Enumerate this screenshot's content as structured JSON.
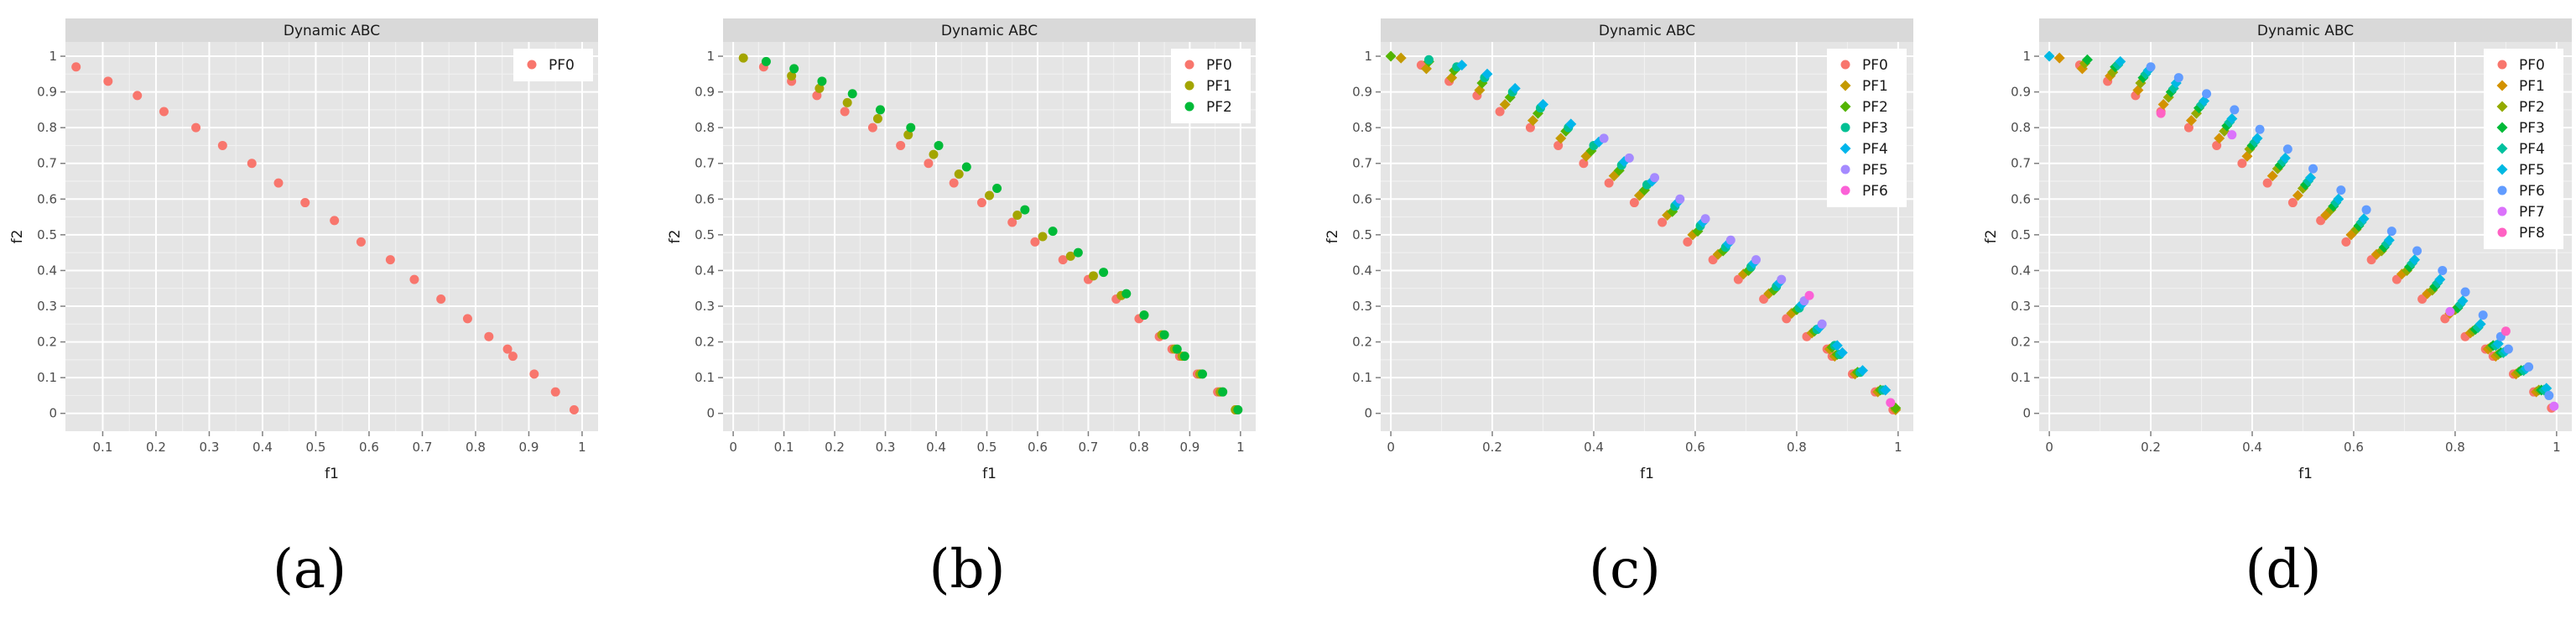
{
  "chart_data": [
    {
      "type": "scatter",
      "caption": "(a)",
      "strip_title": "Dynamic ABC",
      "xlabel": "f1",
      "ylabel": "f2",
      "xticks": [
        "0.1",
        "0.2",
        "0.3",
        "0.4",
        "0.5",
        "0.6",
        "0.7",
        "0.8",
        "0.9",
        "1"
      ],
      "xtick_values": [
        0.1,
        0.2,
        0.3,
        0.4,
        0.5,
        0.6,
        0.7,
        0.8,
        0.9,
        1.0
      ],
      "yticks": [
        "0",
        "0.1",
        "0.2",
        "0.3",
        "0.4",
        "0.5",
        "0.6",
        "0.7",
        "0.8",
        "0.9",
        "1"
      ],
      "xlim": [
        0.03,
        1.03
      ],
      "ylim": [
        -0.05,
        1.04
      ],
      "legend_position": "top-right",
      "series": [
        {
          "name": "PF0",
          "color": "#F8766D",
          "x": [
            0.05,
            0.11,
            0.165,
            0.215,
            0.275,
            0.325,
            0.38,
            0.43,
            0.48,
            0.535,
            0.585,
            0.64,
            0.685,
            0.735,
            0.785,
            0.825,
            0.86,
            0.87,
            0.91,
            0.95,
            0.985
          ],
          "y": [
            0.97,
            0.93,
            0.89,
            0.845,
            0.8,
            0.75,
            0.7,
            0.645,
            0.59,
            0.54,
            0.48,
            0.43,
            0.375,
            0.32,
            0.265,
            0.215,
            0.18,
            0.16,
            0.11,
            0.06,
            0.01
          ]
        }
      ]
    },
    {
      "type": "scatter",
      "caption": "(b)",
      "strip_title": "Dynamic ABC",
      "xlabel": "f1",
      "ylabel": "f2",
      "xticks": [
        "0",
        "0.1",
        "0.2",
        "0.3",
        "0.4",
        "0.5",
        "0.6",
        "0.7",
        "0.8",
        "0.9",
        "1"
      ],
      "xtick_values": [
        0.0,
        0.1,
        0.2,
        0.3,
        0.4,
        0.5,
        0.6,
        0.7,
        0.8,
        0.9,
        1.0
      ],
      "yticks": [
        "0",
        "0.1",
        "0.2",
        "0.3",
        "0.4",
        "0.5",
        "0.6",
        "0.7",
        "0.8",
        "0.9",
        "1"
      ],
      "xlim": [
        -0.02,
        1.03
      ],
      "ylim": [
        -0.05,
        1.04
      ],
      "legend_position": "top-right",
      "series": [
        {
          "name": "PF0",
          "color": "#F8766D",
          "x": [
            0.06,
            0.115,
            0.165,
            0.22,
            0.275,
            0.33,
            0.385,
            0.435,
            0.49,
            0.55,
            0.595,
            0.65,
            0.7,
            0.755,
            0.8,
            0.84,
            0.865,
            0.88,
            0.915,
            0.955,
            0.99
          ],
          "y": [
            0.97,
            0.93,
            0.89,
            0.845,
            0.8,
            0.75,
            0.7,
            0.645,
            0.59,
            0.535,
            0.48,
            0.43,
            0.375,
            0.32,
            0.265,
            0.215,
            0.18,
            0.16,
            0.11,
            0.06,
            0.01
          ]
        },
        {
          "name": "PF1",
          "color": "#A3A500",
          "x": [
            0.02,
            0.115,
            0.17,
            0.225,
            0.285,
            0.345,
            0.395,
            0.445,
            0.505,
            0.56,
            0.61,
            0.665,
            0.71,
            0.765,
            0.81,
            0.845,
            0.87,
            0.885,
            0.92,
            0.96,
            0.99
          ],
          "y": [
            0.995,
            0.945,
            0.91,
            0.87,
            0.825,
            0.78,
            0.725,
            0.67,
            0.61,
            0.555,
            0.495,
            0.44,
            0.385,
            0.33,
            0.275,
            0.22,
            0.18,
            0.16,
            0.11,
            0.06,
            0.01
          ]
        },
        {
          "name": "PF2",
          "color": "#00BA38",
          "x": [
            0.065,
            0.12,
            0.175,
            0.235,
            0.29,
            0.35,
            0.405,
            0.46,
            0.52,
            0.575,
            0.63,
            0.68,
            0.73,
            0.775,
            0.81,
            0.85,
            0.875,
            0.89,
            0.925,
            0.965,
            0.995
          ],
          "y": [
            0.985,
            0.965,
            0.93,
            0.895,
            0.85,
            0.8,
            0.75,
            0.69,
            0.63,
            0.57,
            0.51,
            0.45,
            0.395,
            0.335,
            0.275,
            0.22,
            0.18,
            0.16,
            0.11,
            0.06,
            0.01
          ]
        }
      ]
    },
    {
      "type": "scatter",
      "caption": "(c)",
      "strip_title": "Dynamic ABC",
      "xlabel": "f1",
      "ylabel": "f2",
      "xticks": [
        "0",
        "0.2",
        "0.4",
        "0.6",
        "0.8",
        "1"
      ],
      "xtick_values": [
        0.0,
        0.2,
        0.4,
        0.6,
        0.8,
        1.0
      ],
      "yticks": [
        "0",
        "0.1",
        "0.2",
        "0.3",
        "0.4",
        "0.5",
        "0.6",
        "0.7",
        "0.8",
        "0.9",
        "1"
      ],
      "xlim": [
        -0.02,
        1.03
      ],
      "ylim": [
        -0.05,
        1.04
      ],
      "legend_position": "top-right",
      "series": [
        {
          "name": "PF0",
          "color": "#F8766D",
          "shape": "circle",
          "x": [
            0.06,
            0.115,
            0.17,
            0.215,
            0.275,
            0.33,
            0.38,
            0.43,
            0.48,
            0.535,
            0.585,
            0.635,
            0.685,
            0.735,
            0.78,
            0.82,
            0.86,
            0.87,
            0.91,
            0.955,
            0.99
          ],
          "y": [
            0.975,
            0.93,
            0.89,
            0.845,
            0.8,
            0.75,
            0.7,
            0.645,
            0.59,
            0.535,
            0.48,
            0.43,
            0.375,
            0.32,
            0.265,
            0.215,
            0.18,
            0.16,
            0.11,
            0.06,
            0.01
          ]
        },
        {
          "name": "PF1",
          "color": "#C49A00",
          "shape": "diamond",
          "x": [
            0.02,
            0.07,
            0.12,
            0.175,
            0.225,
            0.28,
            0.335,
            0.385,
            0.44,
            0.49,
            0.545,
            0.595,
            0.645,
            0.695,
            0.745,
            0.79,
            0.83,
            0.865,
            0.875,
            0.915,
            0.96,
            0.995
          ],
          "y": [
            0.995,
            0.965,
            0.94,
            0.905,
            0.865,
            0.82,
            0.77,
            0.72,
            0.665,
            0.61,
            0.555,
            0.5,
            0.445,
            0.39,
            0.335,
            0.28,
            0.225,
            0.18,
            0.16,
            0.11,
            0.06,
            0.01
          ]
        },
        {
          "name": "PF2",
          "color": "#53B400",
          "shape": "diamond",
          "x": [
            0.0,
            0.075,
            0.125,
            0.18,
            0.235,
            0.29,
            0.345,
            0.395,
            0.45,
            0.5,
            0.555,
            0.605,
            0.655,
            0.705,
            0.755,
            0.8,
            0.835,
            0.87,
            0.88,
            0.92,
            0.965,
            0.995
          ],
          "y": [
            1.0,
            0.985,
            0.96,
            0.925,
            0.885,
            0.84,
            0.79,
            0.735,
            0.68,
            0.625,
            0.565,
            0.51,
            0.455,
            0.4,
            0.345,
            0.29,
            0.23,
            0.185,
            0.165,
            0.115,
            0.065,
            0.015
          ]
        },
        {
          "name": "PF3",
          "color": "#00C094",
          "shape": "circle",
          "x": [
            0.075,
            0.13,
            0.185,
            0.24,
            0.295,
            0.35,
            0.4,
            0.455,
            0.505,
            0.56,
            0.61,
            0.66,
            0.71,
            0.76,
            0.805,
            0.84,
            0.875,
            0.885,
            0.925,
            0.97
          ],
          "y": [
            0.99,
            0.97,
            0.94,
            0.9,
            0.855,
            0.8,
            0.75,
            0.695,
            0.64,
            0.58,
            0.525,
            0.465,
            0.41,
            0.355,
            0.295,
            0.235,
            0.19,
            0.165,
            0.115,
            0.065
          ]
        },
        {
          "name": "PF4",
          "color": "#00B6EB",
          "shape": "diamond",
          "x": [
            0.14,
            0.19,
            0.245,
            0.3,
            0.355,
            0.41,
            0.46,
            0.515,
            0.565,
            0.615,
            0.665,
            0.715,
            0.765,
            0.81,
            0.845,
            0.88,
            0.89,
            0.93,
            0.975
          ],
          "y": [
            0.975,
            0.95,
            0.91,
            0.865,
            0.81,
            0.76,
            0.705,
            0.65,
            0.59,
            0.535,
            0.475,
            0.42,
            0.365,
            0.305,
            0.24,
            0.19,
            0.17,
            0.12,
            0.065
          ]
        },
        {
          "name": "PF5",
          "color": "#A58AFF",
          "shape": "circle",
          "x": [
            0.42,
            0.47,
            0.52,
            0.57,
            0.62,
            0.67,
            0.72,
            0.77,
            0.815,
            0.85
          ],
          "y": [
            0.77,
            0.715,
            0.66,
            0.6,
            0.545,
            0.485,
            0.43,
            0.375,
            0.315,
            0.25
          ]
        },
        {
          "name": "PF6",
          "color": "#FB61D7",
          "shape": "circle",
          "x": [
            0.825,
            0.985
          ],
          "y": [
            0.33,
            0.03
          ]
        }
      ]
    },
    {
      "type": "scatter",
      "caption": "(d)",
      "strip_title": "Dynamic ABC",
      "xlabel": "f1",
      "ylabel": "f2",
      "xticks": [
        "0",
        "0.2",
        "0.4",
        "0.6",
        "0.8",
        "1"
      ],
      "xtick_values": [
        0.0,
        0.2,
        0.4,
        0.6,
        0.8,
        1.0
      ],
      "yticks": [
        "0",
        "0.1",
        "0.2",
        "0.3",
        "0.4",
        "0.5",
        "0.6",
        "0.7",
        "0.8",
        "0.9",
        "1"
      ],
      "xlim": [
        -0.02,
        1.03
      ],
      "ylim": [
        -0.05,
        1.04
      ],
      "legend_position": "top-right",
      "series": [
        {
          "name": "PF0",
          "color": "#F8766D",
          "shape": "circle",
          "x": [
            0.06,
            0.115,
            0.17,
            0.22,
            0.275,
            0.33,
            0.38,
            0.43,
            0.48,
            0.535,
            0.585,
            0.635,
            0.685,
            0.735,
            0.78,
            0.82,
            0.86,
            0.875,
            0.915,
            0.955,
            0.99
          ],
          "y": [
            0.975,
            0.93,
            0.89,
            0.845,
            0.8,
            0.75,
            0.7,
            0.645,
            0.59,
            0.54,
            0.48,
            0.43,
            0.375,
            0.32,
            0.265,
            0.215,
            0.18,
            0.16,
            0.11,
            0.06,
            0.015
          ]
        },
        {
          "name": "PF1",
          "color": "#D39200",
          "shape": "diamond",
          "x": [
            0.02,
            0.065,
            0.12,
            0.175,
            0.225,
            0.28,
            0.335,
            0.39,
            0.44,
            0.49,
            0.545,
            0.595,
            0.645,
            0.695,
            0.745,
            0.79,
            0.83,
            0.865,
            0.88,
            0.92,
            0.96
          ],
          "y": [
            0.995,
            0.965,
            0.945,
            0.905,
            0.865,
            0.82,
            0.77,
            0.72,
            0.665,
            0.61,
            0.555,
            0.5,
            0.445,
            0.39,
            0.335,
            0.28,
            0.225,
            0.18,
            0.16,
            0.11,
            0.06
          ]
        },
        {
          "name": "PF2",
          "color": "#93AA00",
          "shape": "diamond",
          "x": [
            0.07,
            0.125,
            0.18,
            0.235,
            0.29,
            0.345,
            0.395,
            0.45,
            0.5,
            0.555,
            0.605,
            0.655,
            0.705,
            0.755,
            0.8,
            0.835,
            0.87,
            0.885,
            0.925,
            0.965
          ],
          "y": [
            0.98,
            0.955,
            0.925,
            0.885,
            0.84,
            0.79,
            0.74,
            0.685,
            0.63,
            0.57,
            0.515,
            0.455,
            0.4,
            0.345,
            0.29,
            0.23,
            0.185,
            0.165,
            0.115,
            0.065
          ]
        },
        {
          "name": "PF3",
          "color": "#00BA38",
          "shape": "diamond",
          "x": [
            0.075,
            0.13,
            0.185,
            0.24,
            0.295,
            0.35,
            0.4,
            0.455,
            0.505,
            0.56,
            0.61,
            0.66,
            0.71,
            0.76,
            0.805,
            0.84,
            0.875,
            0.89,
            0.93,
            0.97
          ],
          "y": [
            0.99,
            0.97,
            0.94,
            0.9,
            0.855,
            0.805,
            0.75,
            0.695,
            0.64,
            0.58,
            0.525,
            0.465,
            0.41,
            0.355,
            0.295,
            0.235,
            0.19,
            0.17,
            0.12,
            0.065
          ]
        },
        {
          "name": "PF4",
          "color": "#00C19F",
          "shape": "diamond",
          "x": [
            0.135,
            0.19,
            0.245,
            0.3,
            0.355,
            0.405,
            0.46,
            0.51,
            0.565,
            0.615,
            0.665,
            0.715,
            0.765,
            0.81,
            0.845,
            0.88,
            0.895,
            0.935,
            0.975
          ],
          "y": [
            0.975,
            0.95,
            0.91,
            0.865,
            0.815,
            0.76,
            0.705,
            0.65,
            0.59,
            0.535,
            0.475,
            0.42,
            0.365,
            0.305,
            0.24,
            0.19,
            0.17,
            0.12,
            0.065
          ]
        },
        {
          "name": "PF5",
          "color": "#00B9E3",
          "shape": "diamond",
          "x": [
            0.0,
            0.14,
            0.195,
            0.25,
            0.305,
            0.36,
            0.41,
            0.465,
            0.515,
            0.57,
            0.62,
            0.67,
            0.72,
            0.77,
            0.815,
            0.85,
            0.885,
            0.9,
            0.94,
            0.98
          ],
          "y": [
            1.0,
            0.985,
            0.96,
            0.925,
            0.875,
            0.825,
            0.77,
            0.715,
            0.66,
            0.6,
            0.545,
            0.485,
            0.43,
            0.375,
            0.315,
            0.25,
            0.195,
            0.175,
            0.125,
            0.07
          ]
        },
        {
          "name": "PF6",
          "color": "#619CFF",
          "shape": "circle",
          "x": [
            0.2,
            0.255,
            0.31,
            0.365,
            0.415,
            0.47,
            0.52,
            0.575,
            0.625,
            0.675,
            0.725,
            0.775,
            0.82,
            0.855,
            0.89,
            0.905,
            0.945,
            0.985
          ],
          "y": [
            0.97,
            0.94,
            0.895,
            0.85,
            0.795,
            0.74,
            0.685,
            0.625,
            0.57,
            0.51,
            0.455,
            0.4,
            0.34,
            0.275,
            0.215,
            0.18,
            0.13,
            0.05
          ]
        },
        {
          "name": "PF7",
          "color": "#DB72FB",
          "shape": "circle",
          "x": [
            0.36,
            0.79,
            0.995
          ],
          "y": [
            0.78,
            0.285,
            0.02
          ]
        },
        {
          "name": "PF8",
          "color": "#FF61C3",
          "shape": "circle",
          "x": [
            0.22,
            0.9
          ],
          "y": [
            0.84,
            0.23
          ]
        }
      ]
    }
  ]
}
